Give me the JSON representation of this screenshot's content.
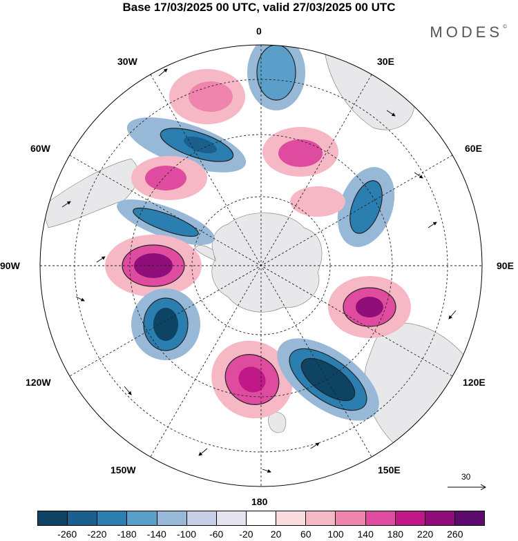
{
  "title": "Base 17/03/2025 00 UTC, valid 27/03/2025 00 UTC",
  "brand": {
    "text": "MODES",
    "mark": "©"
  },
  "longitude_labels": {
    "lon_0": "0",
    "lon_30e": "30E",
    "lon_60e": "60E",
    "lon_90e": "90E",
    "lon_120e": "120E",
    "lon_150e": "150E",
    "lon_180": "180",
    "lon_150w": "150W",
    "lon_120w": "120W",
    "lon_90w": "90W",
    "lon_60w": "60W",
    "lon_30w": "30W"
  },
  "colorbar": {
    "colors": [
      "#0d4463",
      "#1a5f8e",
      "#2b7eb0",
      "#5a9fca",
      "#98b8d8",
      "#c6cfe5",
      "#e4e4f0",
      "#ffffff",
      "#fbdde0",
      "#f6b8c4",
      "#ef84ad",
      "#df4c9f",
      "#c01887",
      "#8f0e7a",
      "#5d0a6e"
    ],
    "tick_labels": [
      "-260",
      "-220",
      "-180",
      "-140",
      "-100",
      "-60",
      "-20",
      "20",
      "60",
      "100",
      "140",
      "180",
      "220",
      "260"
    ]
  },
  "vector_reference": {
    "label": "30"
  },
  "map": {
    "projection": "south-polar-stereographic",
    "colors": {
      "land": "#e8e8ea",
      "coast": "#8a8a8a",
      "grid": "#222222",
      "contour": "#222222"
    }
  }
}
